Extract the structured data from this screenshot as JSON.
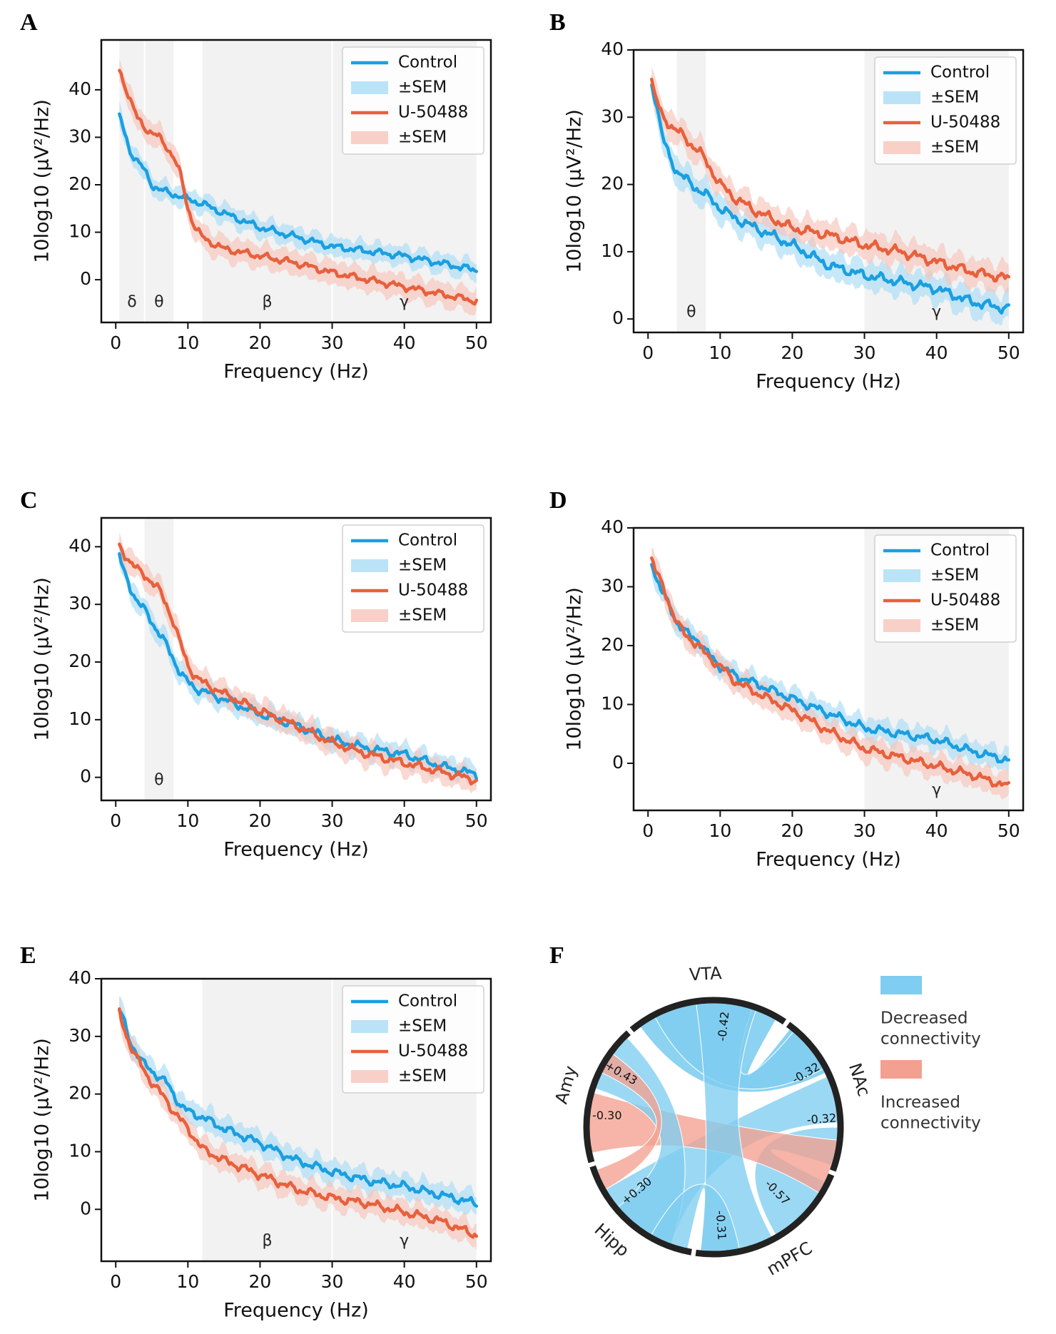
{
  "chart_data": [
    {
      "panel": "A",
      "type": "line",
      "xlabel": "Frequency (Hz)",
      "ylabel": "10log10 (µV²/Hz)",
      "xlim": [
        -2,
        52
      ],
      "ylim": [
        -9,
        50.5
      ],
      "xticks": [
        0,
        10,
        20,
        30,
        40,
        50
      ],
      "yticks": [
        0,
        10,
        20,
        30,
        40
      ],
      "legend": [
        "Control",
        "±SEM",
        "U-50488",
        "±SEM"
      ],
      "legend_position": "top-right",
      "bands": [
        {
          "label": "δ",
          "range": [
            0.5,
            4
          ]
        },
        {
          "label": "θ",
          "range": [
            4,
            8
          ]
        },
        {
          "label": "β",
          "range": [
            12,
            30
          ]
        },
        {
          "label": "γ",
          "range": [
            30,
            50
          ]
        }
      ],
      "series": [
        {
          "name": "Control",
          "color": "#1a9fe0",
          "sem": 2,
          "x": [
            0.5,
            1,
            2,
            3,
            4,
            5,
            6,
            8,
            10,
            12,
            15,
            20,
            25,
            30,
            35,
            40,
            45,
            50
          ],
          "values": [
            34.5,
            32,
            27,
            25,
            23,
            20,
            19,
            18,
            17,
            16,
            14,
            11,
            9,
            7,
            6,
            5,
            3.5,
            2
          ]
        },
        {
          "name": "U-50488",
          "color": "#e8603c",
          "sem": 2.5,
          "x": [
            0.5,
            1,
            2,
            3,
            4,
            5,
            6,
            7,
            8,
            9,
            10,
            11,
            12,
            13,
            15,
            20,
            25,
            30,
            35,
            40,
            45,
            50
          ],
          "values": [
            44,
            42,
            38,
            34,
            32,
            31,
            30,
            28,
            26,
            22,
            15,
            11,
            9,
            8,
            6.5,
            5,
            3.5,
            1.5,
            0,
            -1.5,
            -3,
            -4.5
          ]
        }
      ]
    },
    {
      "panel": "B",
      "type": "line",
      "xlabel": "Frequency (Hz)",
      "ylabel": "10log10 (µV²/Hz)",
      "xlim": [
        -2,
        52
      ],
      "ylim": [
        -2,
        40
      ],
      "xticks": [
        0,
        10,
        20,
        30,
        40,
        50
      ],
      "yticks": [
        0,
        10,
        20,
        30,
        40
      ],
      "legend": [
        "Control",
        "±SEM",
        "U-50488",
        "±SEM"
      ],
      "legend_position": "top-right",
      "bands": [
        {
          "label": "θ",
          "range": [
            4,
            8
          ]
        },
        {
          "label": "γ",
          "range": [
            30,
            50
          ]
        }
      ],
      "series": [
        {
          "name": "Control",
          "color": "#1a9fe0",
          "sem": 2,
          "x": [
            0.5,
            1,
            2,
            3,
            4,
            5,
            6,
            8,
            10,
            12,
            15,
            20,
            25,
            30,
            35,
            40,
            45,
            50
          ],
          "values": [
            35,
            33,
            27,
            24,
            22,
            21,
            20,
            18.5,
            16.5,
            15,
            13.5,
            11,
            8,
            6.5,
            5.5,
            4.5,
            2.5,
            1.5
          ]
        },
        {
          "name": "U-50488",
          "color": "#e8603c",
          "sem": 2,
          "x": [
            0.5,
            1,
            2,
            3,
            4,
            5,
            6,
            7,
            8,
            10,
            12,
            15,
            20,
            25,
            30,
            35,
            40,
            45,
            50
          ],
          "values": [
            35.5,
            33,
            30,
            29,
            28,
            27,
            26,
            25,
            23.5,
            20,
            18,
            16,
            13.5,
            12.5,
            11,
            10,
            8.5,
            7,
            6
          ]
        }
      ]
    },
    {
      "panel": "C",
      "type": "line",
      "xlabel": "Frequency (Hz)",
      "ylabel": "10log10 (µV²/Hz)",
      "xlim": [
        -2,
        52
      ],
      "ylim": [
        -4,
        45
      ],
      "xticks": [
        0,
        10,
        20,
        30,
        40,
        50
      ],
      "yticks": [
        0,
        10,
        20,
        30,
        40
      ],
      "legend": [
        "Control",
        "±SEM",
        "U-50488",
        "±SEM"
      ],
      "legend_position": "top-right",
      "bands": [
        {
          "label": "θ",
          "range": [
            4,
            8
          ]
        }
      ],
      "series": [
        {
          "name": "Control",
          "color": "#1a9fe0",
          "sem": 1.8,
          "x": [
            0.5,
            1,
            2,
            3,
            4,
            5,
            6,
            7,
            8,
            9,
            10,
            11,
            12,
            15,
            20,
            25,
            30,
            35,
            40,
            45,
            50
          ],
          "values": [
            38.5,
            36,
            33,
            30.5,
            29,
            27,
            25,
            23,
            20.5,
            18,
            16.5,
            15.5,
            15,
            13.5,
            11,
            9,
            6.5,
            5,
            4,
            2,
            0.5
          ]
        },
        {
          "name": "U-50488",
          "color": "#e8603c",
          "sem": 2,
          "x": [
            0.5,
            1,
            2,
            3,
            4,
            5,
            6,
            7,
            8,
            9,
            10,
            11,
            12,
            15,
            20,
            25,
            30,
            35,
            40,
            45,
            50
          ],
          "values": [
            40,
            39,
            37.5,
            36,
            35,
            34,
            32.5,
            30,
            27,
            23,
            19.5,
            17.5,
            16.5,
            14.5,
            11.5,
            9,
            6,
            4,
            2.5,
            1,
            -0.5
          ]
        }
      ]
    },
    {
      "panel": "D",
      "type": "line",
      "xlabel": "Frequency (Hz)",
      "ylabel": "10log10 (µV²/Hz)",
      "xlim": [
        -2,
        52
      ],
      "ylim": [
        -8,
        40
      ],
      "xticks": [
        0,
        10,
        20,
        30,
        40,
        50
      ],
      "yticks": [
        0,
        10,
        20,
        30,
        40
      ],
      "legend": [
        "Control",
        "±SEM",
        "U-50488",
        "±SEM"
      ],
      "legend_position": "top-right",
      "bands": [
        {
          "label": "γ",
          "range": [
            30,
            50
          ]
        }
      ],
      "series": [
        {
          "name": "Control",
          "color": "#1a9fe0",
          "sem": 1.8,
          "x": [
            0.5,
            1,
            2,
            3,
            4,
            5,
            6,
            7,
            8,
            10,
            12,
            15,
            20,
            25,
            30,
            35,
            40,
            45,
            50
          ],
          "values": [
            34.5,
            32,
            29,
            26.5,
            24,
            22.5,
            21.5,
            21,
            19,
            16.5,
            15,
            13.5,
            11,
            8.5,
            6,
            5,
            4,
            2,
            0.5
          ]
        },
        {
          "name": "U-50488",
          "color": "#e8603c",
          "sem": 2,
          "x": [
            0.5,
            1,
            2,
            3,
            4,
            5,
            6,
            7,
            8,
            10,
            12,
            15,
            20,
            25,
            30,
            35,
            40,
            45,
            50
          ],
          "values": [
            35,
            33,
            30,
            27,
            24,
            22,
            21,
            20,
            18.5,
            16.5,
            14,
            12,
            9,
            5.5,
            2.5,
            1,
            -0.5,
            -2,
            -4
          ]
        }
      ]
    },
    {
      "panel": "E",
      "type": "line",
      "xlabel": "Frequency (Hz)",
      "ylabel": "10log10 (µV²/Hz)",
      "xlim": [
        -2,
        52
      ],
      "ylim": [
        -9,
        40
      ],
      "xticks": [
        0,
        10,
        20,
        30,
        40,
        50
      ],
      "yticks": [
        0,
        10,
        20,
        30,
        40
      ],
      "legend": [
        "Control",
        "±SEM",
        "U-50488",
        "±SEM"
      ],
      "legend_position": "top-right",
      "bands": [
        {
          "label": "β",
          "range": [
            12,
            30
          ]
        },
        {
          "label": "γ",
          "range": [
            30,
            50
          ]
        }
      ],
      "series": [
        {
          "name": "Control",
          "color": "#1a9fe0",
          "sem": 2,
          "x": [
            0.5,
            1,
            2,
            3,
            4,
            5,
            6,
            7,
            8,
            9,
            10,
            12,
            15,
            20,
            25,
            30,
            35,
            40,
            45,
            50
          ],
          "values": [
            34.5,
            33,
            29,
            27,
            25,
            24,
            23,
            22,
            20,
            18,
            17,
            16,
            14,
            11.5,
            8.5,
            6.5,
            5,
            4,
            2.5,
            1
          ]
        },
        {
          "name": "U-50488",
          "color": "#e8603c",
          "sem": 2,
          "x": [
            0.5,
            1,
            2,
            3,
            4,
            5,
            6,
            7,
            8,
            9,
            10,
            12,
            15,
            20,
            25,
            30,
            35,
            40,
            45,
            50
          ],
          "values": [
            34,
            32,
            28.5,
            26,
            24,
            22,
            20.5,
            19,
            17,
            15.5,
            14,
            10.5,
            8.5,
            6,
            3.5,
            2,
            1,
            -0.5,
            -2,
            -4.5
          ]
        }
      ]
    },
    {
      "panel": "F",
      "type": "chord",
      "nodes": [
        "VTA",
        "NAc",
        "mPFC",
        "Hipp",
        "Amy"
      ],
      "links": [
        {
          "source": "VTA",
          "target": "VTA",
          "value": -0.42,
          "label": "-0.42"
        },
        {
          "source": "NAc",
          "target": "Hipp",
          "value": -0.32,
          "label": "-0.32"
        },
        {
          "source": "NAc",
          "target": "mPFC",
          "value": -0.32,
          "label": "-0.32"
        },
        {
          "source": "Amy",
          "target": "mPFC",
          "value": 0.43,
          "label": "+0.43"
        },
        {
          "source": "Amy",
          "target": "Hipp",
          "value": -0.3,
          "label": "-0.30"
        },
        {
          "source": "Hipp",
          "target": "Amy",
          "value": 0.3,
          "label": "+0.30"
        },
        {
          "source": "mPFC",
          "target": "VTA",
          "value": -0.57,
          "label": "-0.57"
        },
        {
          "source": "mPFC",
          "target": "Hipp",
          "value": -0.31,
          "label": "-0.31"
        }
      ],
      "legend": [
        {
          "label_line1": "Decreased",
          "label_line2": "connectivity",
          "color": "#7fcdf0"
        },
        {
          "label_line1": "Increased",
          "label_line2": "connectivity",
          "color": "#f3a090"
        }
      ]
    }
  ],
  "colors": {
    "control": "#1a9fe0",
    "control_band": "#a9dcf6",
    "drug": "#e8603c",
    "drug_band": "#f6c4ba",
    "band_shade": "#f2f2f2",
    "chord_blue": "#7fcdf0",
    "chord_red": "#f3a090"
  }
}
